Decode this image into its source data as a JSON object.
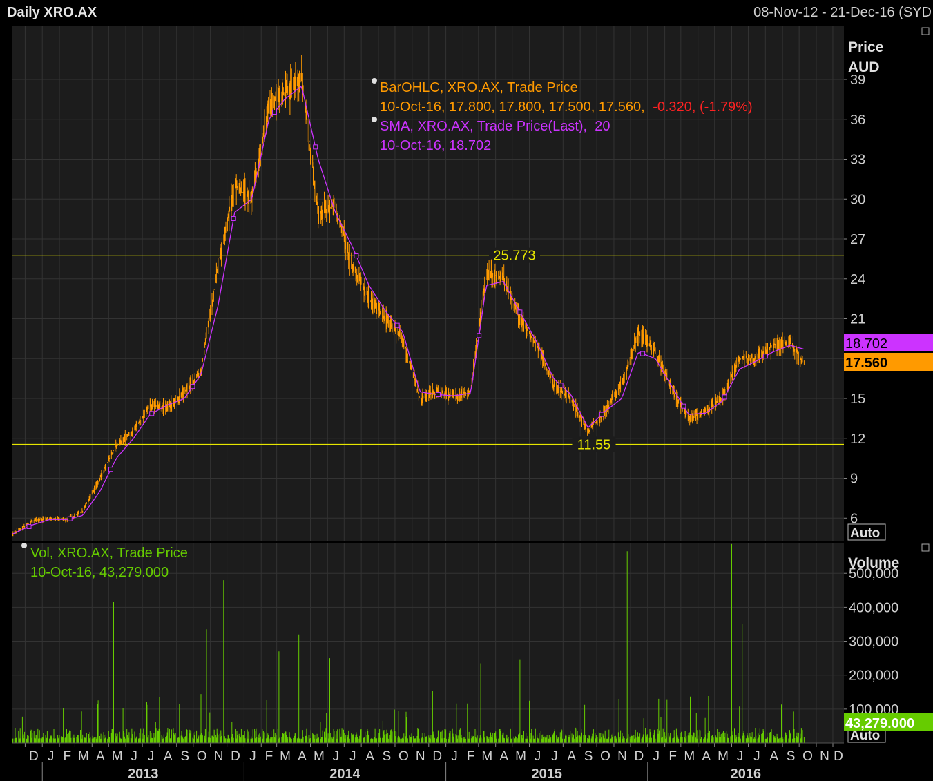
{
  "header": {
    "title": "Daily XRO.AX",
    "date_range": "08-Nov-12 - 21-Dec-16 (SYD"
  },
  "price_panel": {
    "axis_title_1": "Price",
    "axis_title_2": "AUD",
    "auto_label": "Auto",
    "legend_ohlc_line1": "BarOHLC, XRO.AX, Trade Price",
    "legend_ohlc_line2_values": "10-Oct-16, 17.800, 17.800, 17.500, 17.560,",
    "legend_ohlc_line2_change": "-0.320, (-1.79%)",
    "legend_sma_line1": "SMA, XRO.AX, Trade Price(Last),  20",
    "legend_sma_line2": "10-Oct-16, 18.702",
    "sma_last_label": "18.702",
    "price_last_label": "17.560",
    "hline_high_label": "25.773",
    "hline_low_label": "11.55"
  },
  "volume_panel": {
    "axis_title": "Volume",
    "auto_label": "Auto",
    "legend_line1": "Vol, XRO.AX, Trade Price",
    "legend_line2": "10-Oct-16, 43,279.000",
    "last_label": "43,279.000"
  },
  "time_axis": {
    "months": [
      "D",
      "J",
      "F",
      "M",
      "A",
      "M",
      "J",
      "J",
      "A",
      "S",
      "O",
      "N",
      "D",
      "J",
      "F",
      "M",
      "A",
      "M",
      "J",
      "J",
      "A",
      "S",
      "O",
      "N",
      "D",
      "J",
      "F",
      "M",
      "A",
      "M",
      "J",
      "J",
      "A",
      "S",
      "O",
      "N",
      "D",
      "J",
      "F",
      "M",
      "A",
      "M",
      "J",
      "J",
      "A",
      "S",
      "O",
      "N",
      "D"
    ],
    "years": [
      "2013",
      "2014",
      "2015",
      "2016"
    ]
  },
  "colors": {
    "background": "#1c1c1c",
    "grid": "#333333",
    "price": "#ff9a00",
    "sma": "#cc33ff",
    "hline": "#e6e600",
    "volume": "#66cc00",
    "negative": "#ff2222",
    "axis_text": "#d0d0d0"
  },
  "chart_data": [
    {
      "type": "line",
      "series": [
        {
          "name": "BarOHLC, XRO.AX, Trade Price",
          "style": "ohlc-bars"
        },
        {
          "name": "SMA, XRO.AX, Trade Price(Last), 20",
          "style": "line"
        }
      ],
      "x": [
        "2012-11-08",
        "2012-12-15",
        "2013-01-15",
        "2013-02-15",
        "2013-03-15",
        "2013-04-15",
        "2013-05-15",
        "2013-06-15",
        "2013-07-15",
        "2013-08-15",
        "2013-09-15",
        "2013-10-15",
        "2013-11-15",
        "2013-12-15",
        "2014-01-15",
        "2014-02-15",
        "2014-03-15",
        "2014-04-15",
        "2014-05-15",
        "2014-06-15",
        "2014-07-15",
        "2014-08-15",
        "2014-09-15",
        "2014-10-15",
        "2014-11-15",
        "2014-12-15",
        "2015-01-15",
        "2015-02-15",
        "2015-03-15",
        "2015-04-15",
        "2015-05-15",
        "2015-06-15",
        "2015-07-15",
        "2015-08-15",
        "2015-09-15",
        "2015-10-15",
        "2015-11-15",
        "2015-12-15",
        "2016-01-15",
        "2016-02-15",
        "2016-03-15",
        "2016-04-15",
        "2016-05-15",
        "2016-06-15",
        "2016-07-15",
        "2016-08-15",
        "2016-09-15",
        "2016-10-10"
      ],
      "close": [
        4.8,
        5.8,
        6.0,
        5.9,
        6.5,
        9.0,
        11.5,
        12.5,
        14.5,
        14.3,
        15.5,
        17.0,
        25.0,
        31.0,
        30.0,
        37.0,
        38.0,
        39.0,
        29.0,
        29.5,
        25.0,
        22.5,
        21.0,
        19.5,
        15.0,
        15.5,
        15.2,
        15.5,
        24.5,
        24.0,
        21.0,
        19.0,
        16.0,
        15.0,
        12.5,
        14.0,
        16.0,
        20.0,
        18.5,
        15.5,
        13.5,
        14.0,
        15.0,
        18.0,
        18.0,
        19.0,
        19.2,
        17.56
      ],
      "sma": [
        4.8,
        5.5,
        5.9,
        5.9,
        6.2,
        8.0,
        10.5,
        12.0,
        13.8,
        14.5,
        15.0,
        16.8,
        22.0,
        29.0,
        30.0,
        36.0,
        37.5,
        38.5,
        33.0,
        29.0,
        26.5,
        23.5,
        21.5,
        20.0,
        15.5,
        15.3,
        15.2,
        15.4,
        23.5,
        23.8,
        21.5,
        19.2,
        16.5,
        15.3,
        12.8,
        14.0,
        15.0,
        18.5,
        18.0,
        15.8,
        13.8,
        13.9,
        14.8,
        17.2,
        17.8,
        18.5,
        19.0,
        18.702
      ],
      "ylabel": "Price\nAUD",
      "ylim": [
        4.3,
        43
      ],
      "yticks": [
        6,
        9,
        12,
        15,
        18,
        21,
        24,
        27,
        30,
        33,
        36,
        39
      ],
      "hlines": [
        25.773,
        11.55
      ],
      "last": {
        "date": "10-Oct-16",
        "open": 17.8,
        "high": 17.8,
        "low": 17.5,
        "close": 17.56,
        "change": -0.32,
        "change_pct": -1.79,
        "sma20": 18.702
      },
      "grid": true
    },
    {
      "type": "bar",
      "series": [
        {
          "name": "Vol, XRO.AX, Trade Price"
        }
      ],
      "ylabel": "Volume",
      "ylim": [
        0,
        590000
      ],
      "yticks": [
        100000,
        200000,
        300000,
        400000,
        500000
      ],
      "yticklabels": [
        "100,000",
        "200,000",
        "300,000",
        "400,000",
        "500,000"
      ],
      "spikes": [
        {
          "date": "2013-05-10",
          "value": 415000
        },
        {
          "date": "2013-10-25",
          "value": 335000
        },
        {
          "date": "2013-11-25",
          "value": 480000
        },
        {
          "date": "2014-04-10",
          "value": 320000
        },
        {
          "date": "2014-03-05",
          "value": 270000
        },
        {
          "date": "2014-06-05",
          "value": 250000
        },
        {
          "date": "2015-03-05",
          "value": 235000
        },
        {
          "date": "2015-05-15",
          "value": 245000
        },
        {
          "date": "2015-11-25",
          "value": 565000
        },
        {
          "date": "2016-06-01",
          "value": 630000
        },
        {
          "date": "2016-06-20",
          "value": 350000
        }
      ],
      "baseline": 25000,
      "last": {
        "date": "10-Oct-16",
        "value": 43279
      },
      "grid": true
    }
  ]
}
